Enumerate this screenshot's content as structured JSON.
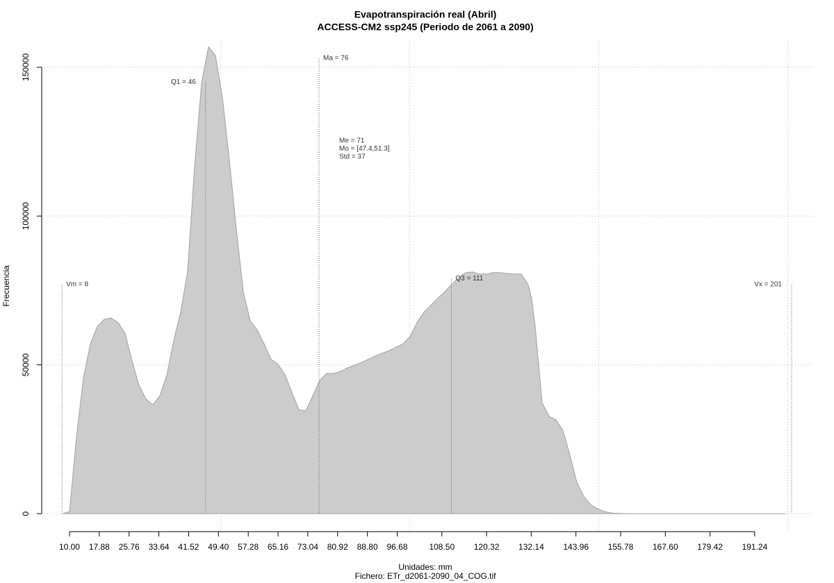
{
  "chart_data": {
    "type": "area",
    "title": "Evapotranspiración real (Abril)",
    "subtitle": "ACCESS-CM2 ssp245 (Periodo de 2061 a 2090)",
    "x_label": "Unidades: mm",
    "file_label": "Fichero: ETr_d2061-2090_04_COG.tif",
    "y_label": "Frecuencia",
    "color": "#cccccc",
    "x": [
      8.16,
      10.0,
      11.84,
      13.68,
      15.51,
      17.35,
      19.19,
      21.03,
      22.87,
      24.71,
      26.54,
      28.38,
      30.22,
      32.06,
      33.9,
      35.74,
      37.57,
      39.41,
      41.25,
      43.09,
      44.93,
      46.76,
      48.6,
      50.44,
      52.28,
      54.12,
      55.96,
      57.79,
      59.63,
      61.47,
      63.31,
      65.15,
      66.99,
      68.82,
      70.66,
      72.5,
      74.34,
      76.18,
      78.01,
      79.85,
      81.69,
      83.53,
      87.21,
      90.88,
      94.56,
      98.24,
      100.07,
      101.91,
      103.75,
      105.59,
      107.43,
      109.26,
      111.1,
      112.94,
      114.78,
      116.62,
      118.46,
      120.29,
      122.13,
      123.97,
      125.81,
      127.65,
      129.49,
      131.32,
      132.24,
      133.16,
      135.0,
      136.84,
      138.68,
      140.51,
      142.35,
      144.19,
      146.03,
      147.87,
      149.71,
      151.54,
      153.38,
      157.06,
      199.34
    ],
    "values": [
      0,
      700,
      25660,
      45500,
      57100,
      62900,
      65300,
      65800,
      64200,
      60600,
      51300,
      43100,
      38500,
      36600,
      39600,
      46600,
      58300,
      67700,
      81600,
      116600,
      144600,
      156900,
      153900,
      139900,
      118900,
      95600,
      74600,
      64800,
      61800,
      57100,
      51900,
      50200,
      46700,
      40800,
      35000,
      34500,
      39600,
      44800,
      47100,
      47100,
      47800,
      49000,
      50800,
      53000,
      54800,
      57100,
      59500,
      64200,
      67700,
      70000,
      72400,
      74600,
      77000,
      79300,
      81000,
      81200,
      80500,
      80500,
      81000,
      81000,
      80700,
      80500,
      80500,
      77000,
      72400,
      63000,
      37300,
      32700,
      31500,
      28000,
      19800,
      10500,
      5800,
      3000,
      1600,
      700,
      200,
      0,
      0
    ],
    "xlim": [
      2.65,
      206.7
    ],
    "ylim": [
      -6500,
      158600
    ],
    "xticks": [
      {
        "value": 10,
        "label": "10.00"
      },
      17.88,
      25.76,
      33.64,
      41.52,
      {
        "value": 49.4,
        "label": "49.40"
      },
      57.28,
      65.16,
      73.04,
      80.92,
      {
        "value": 88.8,
        "label": "88.80"
      },
      96.68,
      {
        "value": 108.5,
        "label": "108.50"
      },
      120.32,
      132.14,
      143.96,
      155.78,
      {
        "value": 167.6,
        "label": "167.60"
      },
      179.42,
      191.24
    ],
    "yticks": [
      0,
      50000,
      100000,
      150000
    ],
    "xgrid": [
      50,
      100,
      150,
      200
    ],
    "grid": true,
    "markers": [
      {
        "label": "Vm = 8",
        "x": 8,
        "top": 77000
      },
      {
        "label": "Q1 = 46",
        "x": 46,
        "top": 145000
      },
      {
        "label": "Ma = 76",
        "x": 76,
        "top": 153000
      },
      {
        "label": "Q3 = 111",
        "x": 111,
        "top": 79000
      },
      {
        "label": "Vx = 201",
        "x": 201,
        "top": 77000
      }
    ],
    "stats": [
      "Me = 71",
      "Mo = [47.4,51.3]",
      "Std = 37"
    ]
  }
}
